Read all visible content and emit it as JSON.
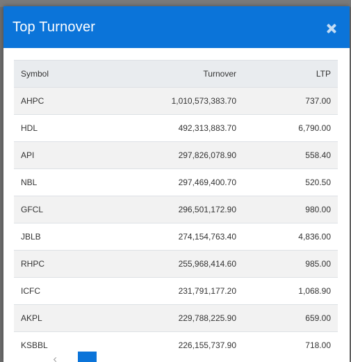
{
  "modal": {
    "title": "Top Turnover"
  },
  "table": {
    "headers": {
      "symbol": "Symbol",
      "turnover": "Turnover",
      "ltp": "LTP"
    },
    "rows": [
      {
        "symbol": "AHPC",
        "turnover": "1,010,573,383.70",
        "ltp": "737.00"
      },
      {
        "symbol": "HDL",
        "turnover": "492,313,883.70",
        "ltp": "6,790.00"
      },
      {
        "symbol": "API",
        "turnover": "297,826,078.90",
        "ltp": "558.40"
      },
      {
        "symbol": "NBL",
        "turnover": "297,469,400.70",
        "ltp": "520.50"
      },
      {
        "symbol": "GFCL",
        "turnover": "296,501,172.90",
        "ltp": "980.00"
      },
      {
        "symbol": "JBLB",
        "turnover": "274,154,763.40",
        "ltp": "4,836.00"
      },
      {
        "symbol": "RHPC",
        "turnover": "255,968,414.60",
        "ltp": "985.00"
      },
      {
        "symbol": "ICFC",
        "turnover": "231,791,177.20",
        "ltp": "1,068.90"
      },
      {
        "symbol": "AKPL",
        "turnover": "229,788,225.90",
        "ltp": "659.00"
      },
      {
        "symbol": "KSBBL",
        "turnover": "226,155,737.90",
        "ltp": "718.00"
      }
    ]
  },
  "colors": {
    "header_bg": "#0b74d9",
    "table_header_bg": "#e9ecef",
    "row_alt_bg": "#f2f2f2"
  },
  "icons": {
    "close": "close-icon"
  }
}
